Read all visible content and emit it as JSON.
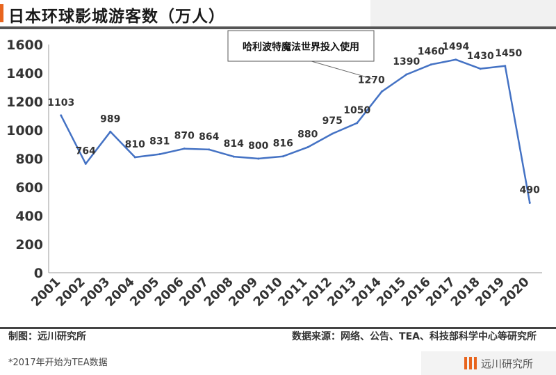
{
  "header": {
    "title": "日本环球影城游客数（万人）"
  },
  "footer": {
    "left": "制图：远川研究所",
    "right": "数据来源：网络、公告、TEA、科技部科学中心等研究所",
    "footnote": "*2017年开始为TEA数据"
  },
  "brand": {
    "name": "远川研究所"
  },
  "chart_data": {
    "type": "line",
    "title": "日本环球影城游客数（万人）",
    "xlabel": "",
    "ylabel": "",
    "categories": [
      "2001",
      "2002",
      "2003",
      "2004",
      "2005",
      "2006",
      "2007",
      "2008",
      "2009",
      "2010",
      "2011",
      "2012",
      "2013",
      "2014",
      "2015",
      "2016",
      "2017",
      "2018",
      "2019",
      "2020"
    ],
    "series": [
      {
        "values": [
          1103,
          764,
          989,
          810,
          831,
          870,
          864,
          814,
          800,
          816,
          880,
          975,
          1050,
          1270,
          1390,
          1460,
          1494,
          1430,
          1450,
          490
        ],
        "color": "#4472c4"
      }
    ],
    "ylim": [
      0,
      1600
    ],
    "yticks": [
      0,
      200,
      400,
      600,
      800,
      1000,
      1200,
      1400,
      1600
    ],
    "grid": false,
    "legend": "none",
    "annotation": {
      "text": "哈利波特魔法世界投入使用",
      "category": "2014"
    }
  }
}
